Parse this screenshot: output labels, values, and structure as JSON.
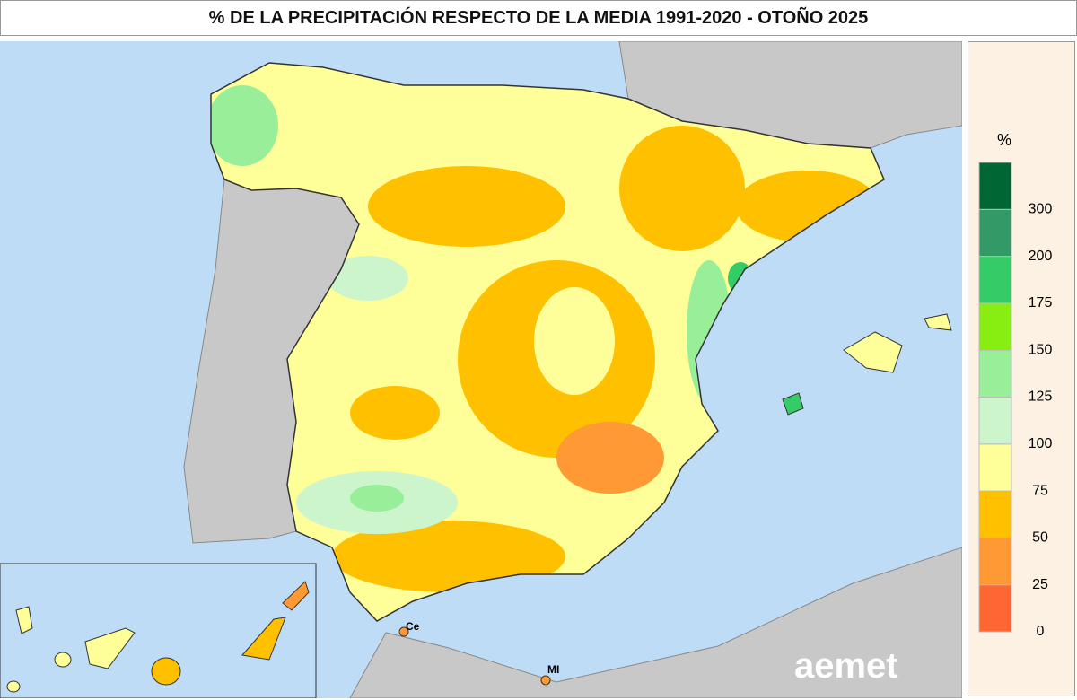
{
  "title": "% DE LA PRECIPITACIÓN RESPECTO DE LA MEDIA 1991-2020 - OTOÑO 2025",
  "legend": {
    "unit": "%",
    "colors": [
      "#ff6633",
      "#ff9933",
      "#ffc000",
      "#ffff99",
      "#ccf5cc",
      "#99ee99",
      "#88ee11",
      "#33cc66",
      "#339966",
      "#006633"
    ],
    "ticks": [
      0,
      25,
      50,
      75,
      100,
      125,
      150,
      175,
      200,
      300
    ]
  },
  "labels": {
    "ceuta": "Ce",
    "melilla": "MI"
  },
  "logo": "aemet"
}
